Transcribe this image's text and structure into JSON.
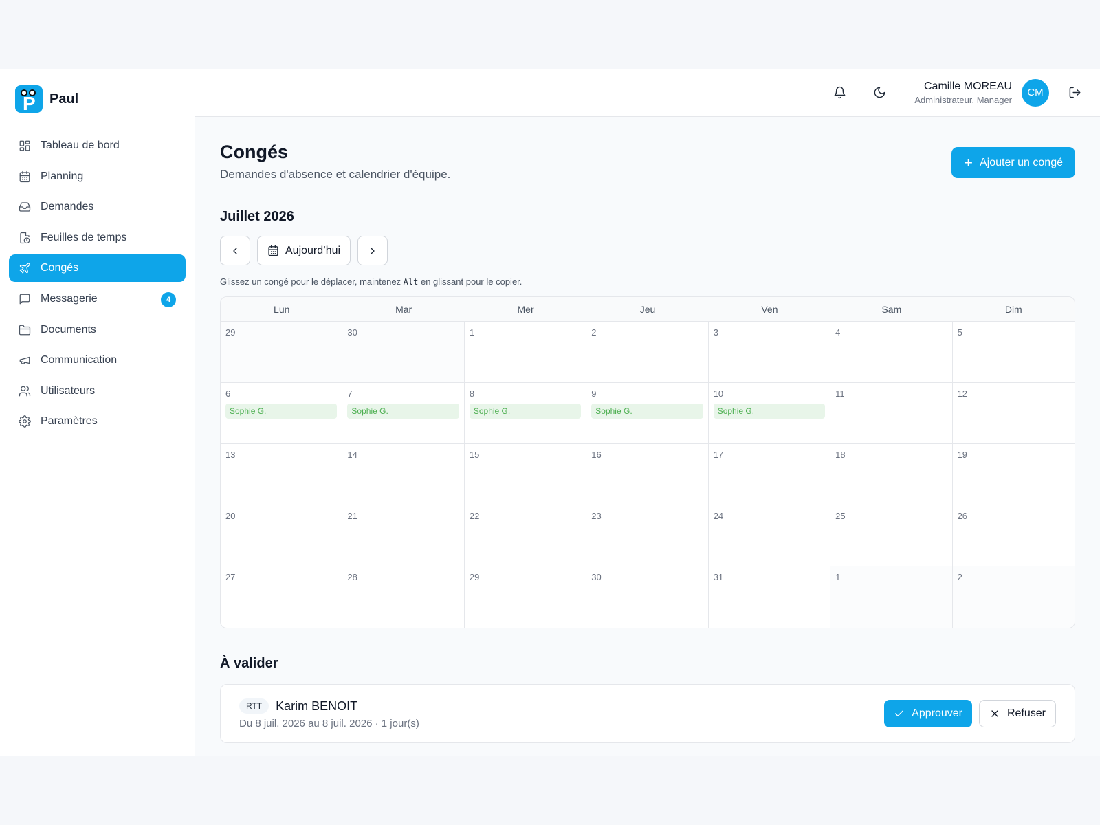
{
  "brand": {
    "name": "Paul"
  },
  "sidebar": {
    "items": [
      {
        "label": "Tableau de bord",
        "icon": "dashboard-icon"
      },
      {
        "label": "Planning",
        "icon": "calendar-icon"
      },
      {
        "label": "Demandes",
        "icon": "inbox-icon"
      },
      {
        "label": "Feuilles de temps",
        "icon": "timesheet-icon"
      },
      {
        "label": "Congés",
        "icon": "plane-icon",
        "active": true
      },
      {
        "label": "Messagerie",
        "icon": "message-icon",
        "badge": "4"
      },
      {
        "label": "Documents",
        "icon": "folder-icon"
      },
      {
        "label": "Communication",
        "icon": "megaphone-icon"
      },
      {
        "label": "Utilisateurs",
        "icon": "users-icon"
      },
      {
        "label": "Paramètres",
        "icon": "gear-icon"
      }
    ]
  },
  "topbar": {
    "user_name": "Camille MOREAU",
    "user_role": "Administrateur, Manager",
    "avatar_initials": "CM"
  },
  "page": {
    "title": "Congés",
    "subtitle": "Demandes d'absence et calendrier d'équipe.",
    "add_button": "Ajouter un congé"
  },
  "calendar": {
    "month_title": "Juillet 2026",
    "today_label": "Aujourd’hui",
    "hint_before": "Glissez un congé pour le déplacer, maintenez ",
    "hint_key": "Alt",
    "hint_after": " en glissant pour le copier.",
    "weekdays": [
      "Lun",
      "Mar",
      "Mer",
      "Jeu",
      "Ven",
      "Sam",
      "Dim"
    ],
    "weeks": [
      [
        {
          "day": "29",
          "other": true
        },
        {
          "day": "30",
          "other": true
        },
        {
          "day": "1"
        },
        {
          "day": "2"
        },
        {
          "day": "3"
        },
        {
          "day": "4"
        },
        {
          "day": "5"
        }
      ],
      [
        {
          "day": "6",
          "event": "Sophie G."
        },
        {
          "day": "7",
          "event": "Sophie G."
        },
        {
          "day": "8",
          "event": "Sophie G."
        },
        {
          "day": "9",
          "event": "Sophie G."
        },
        {
          "day": "10",
          "event": "Sophie G."
        },
        {
          "day": "11"
        },
        {
          "day": "12"
        }
      ],
      [
        {
          "day": "13"
        },
        {
          "day": "14"
        },
        {
          "day": "15"
        },
        {
          "day": "16"
        },
        {
          "day": "17"
        },
        {
          "day": "18"
        },
        {
          "day": "19"
        }
      ],
      [
        {
          "day": "20"
        },
        {
          "day": "21"
        },
        {
          "day": "22"
        },
        {
          "day": "23"
        },
        {
          "day": "24"
        },
        {
          "day": "25"
        },
        {
          "day": "26"
        }
      ],
      [
        {
          "day": "27"
        },
        {
          "day": "28"
        },
        {
          "day": "29"
        },
        {
          "day": "30"
        },
        {
          "day": "31"
        },
        {
          "day": "1",
          "other": true
        },
        {
          "day": "2",
          "other": true
        }
      ]
    ]
  },
  "pending": {
    "title": "À valider",
    "request": {
      "tag": "RTT",
      "name": "Karim BENOIT",
      "dates": "Du 8 juil. 2026 au 8 juil. 2026 · 1 jour(s)",
      "approve_label": "Approuver",
      "refuse_label": "Refuser"
    }
  }
}
